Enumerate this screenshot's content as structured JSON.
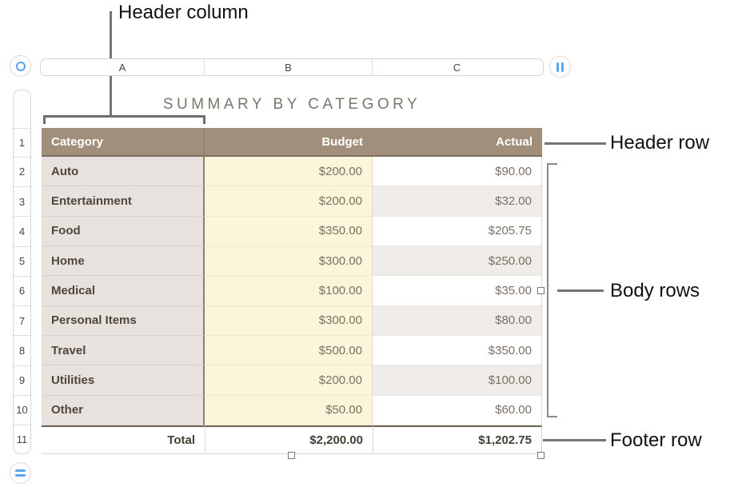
{
  "annotations": {
    "header_column_label": "Header column",
    "header_row_label": "Header row",
    "body_rows_label": "Body rows",
    "footer_row_label": "Footer row"
  },
  "column_bar": [
    "A",
    "B",
    "C"
  ],
  "row_numbers": [
    "1",
    "2",
    "3",
    "4",
    "5",
    "6",
    "7",
    "8",
    "9",
    "10",
    "11"
  ],
  "table": {
    "title": "SUMMARY BY CATEGORY",
    "columns": [
      "Category",
      "Budget",
      "Actual"
    ],
    "rows": [
      {
        "category": "Auto",
        "budget": "$200.00",
        "actual": "$90.00"
      },
      {
        "category": "Entertainment",
        "budget": "$200.00",
        "actual": "$32.00"
      },
      {
        "category": "Food",
        "budget": "$350.00",
        "actual": "$205.75"
      },
      {
        "category": "Home",
        "budget": "$300.00",
        "actual": "$250.00"
      },
      {
        "category": "Medical",
        "budget": "$100.00",
        "actual": "$35.00"
      },
      {
        "category": "Personal Items",
        "budget": "$300.00",
        "actual": "$80.00"
      },
      {
        "category": "Travel",
        "budget": "$500.00",
        "actual": "$350.00"
      },
      {
        "category": "Utilities",
        "budget": "$200.00",
        "actual": "$100.00"
      },
      {
        "category": "Other",
        "budget": "$50.00",
        "actual": "$60.00"
      }
    ],
    "footer": {
      "label": "Total",
      "budget": "$2,200.00",
      "actual": "$1,202.75"
    }
  },
  "colors": {
    "header_bg": "#a28f7b",
    "header_text": "#ffffff",
    "header_column_bg": "#e7e2dd",
    "budget_column_bg": "#fdf5da",
    "actual_alt_bg": "#efece9",
    "accent_blue": "#58a4f2"
  }
}
